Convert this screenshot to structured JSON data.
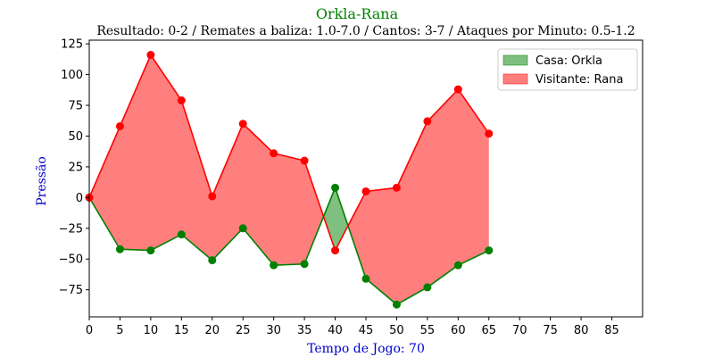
{
  "chart_data": {
    "type": "area",
    "title": "Orkla-Rana",
    "subtitle": "Resultado: 0-2 / Remates a baliza: 1.0-7.0 / Cantos: 3-7 / Ataques por Minuto: 0.5-1.2",
    "xlabel": "Tempo de Jogo: 70",
    "ylabel": "Pressão",
    "xlim": [
      0,
      90
    ],
    "ylim": [
      -97,
      128
    ],
    "x_ticks": [
      0,
      5,
      10,
      15,
      20,
      25,
      30,
      35,
      40,
      45,
      50,
      55,
      60,
      65,
      70,
      75,
      80,
      85
    ],
    "y_ticks": [
      -75,
      -50,
      -25,
      0,
      25,
      50,
      75,
      100,
      125
    ],
    "grid": false,
    "legend_position": "top-right",
    "x": [
      0,
      5,
      10,
      15,
      20,
      25,
      30,
      35,
      40,
      45,
      50,
      55,
      60,
      65
    ],
    "series": [
      {
        "name": "Casa: Orkla",
        "color": "#008000",
        "fill": "#008000",
        "values": [
          0,
          -42,
          -43,
          -30,
          -51,
          -25,
          -55,
          -54,
          8,
          -66,
          -87,
          -73,
          -55,
          -43
        ]
      },
      {
        "name": "Visitante: Rana",
        "color": "#ff0000",
        "fill": "#ff0000",
        "values": [
          0,
          58,
          116,
          79,
          1,
          60,
          36,
          30,
          -43,
          5,
          8,
          62,
          88,
          52
        ]
      }
    ]
  }
}
